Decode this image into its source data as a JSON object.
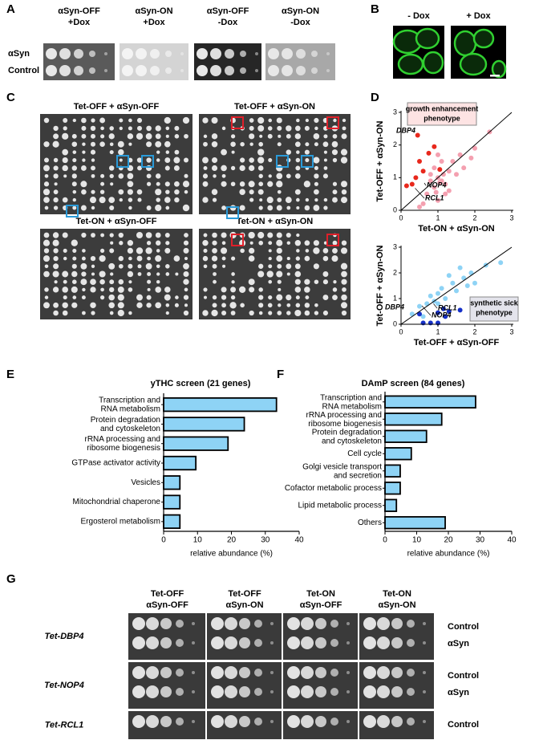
{
  "panel_labels": [
    "A",
    "B",
    "C",
    "D",
    "E",
    "F",
    "G"
  ],
  "panel_a": {
    "columns": [
      [
        "αSyn-OFF",
        "+Dox"
      ],
      [
        "αSyn-ON",
        "+Dox"
      ],
      [
        "αSyn-OFF",
        "-Dox"
      ],
      [
        "αSyn-ON",
        "-Dox"
      ]
    ],
    "rows": [
      "αSyn",
      "Control"
    ]
  },
  "panel_b": {
    "columns": [
      "- Dox",
      "+ Dox"
    ]
  },
  "panel_c": {
    "titles": [
      "Tet-OFF + αSyn-OFF",
      "Tet-OFF + αSyn-ON",
      "Tet-ON + αSyn-OFF",
      "Tet-ON + αSyn-ON"
    ]
  },
  "panel_g": {
    "columns": [
      [
        "Tet-OFF",
        "αSyn-OFF"
      ],
      [
        "Tet-OFF",
        "αSyn-ON"
      ],
      [
        "Tet-ON",
        "αSyn-OFF"
      ],
      [
        "Tet-ON",
        "αSyn-ON"
      ]
    ],
    "strains": [
      "Tet-DBP4",
      "Tet-NOP4",
      "Tet-RCL1"
    ],
    "strain_colors": [
      "#e0202a",
      "#1a7fc4",
      "#1a7fc4"
    ],
    "rows": [
      "Control",
      "αSyn"
    ]
  },
  "chart_data": [
    {
      "type": "bar",
      "orientation": "horizontal",
      "title": "yTHC screen (21 genes)",
      "categories": [
        "Transcription and\nRNA metabolism",
        "Protein degradation\nand cytoskeleton",
        "rRNA processing and\nribosome biogenesis",
        "GTPase activator activity",
        "Vesicles",
        "Mitochondrial chaperone",
        "Ergosterol metabolism"
      ],
      "values": [
        33.3,
        23.8,
        19.0,
        9.5,
        4.8,
        4.8,
        4.8
      ],
      "color": "#8ed3f5",
      "xlim": [
        0,
        40
      ],
      "xticks": [
        0,
        10,
        20,
        30,
        40
      ],
      "xlabel": "relative abundance (%)"
    },
    {
      "type": "bar",
      "orientation": "horizontal",
      "title": "DAmP screen (84 genes)",
      "categories": [
        "Transcription and\nRNA metabolism",
        "rRNA processing  and\nribosome biogenesis",
        "Protein degradation\nand cytoskeleton",
        "Cell cycle",
        "Golgi vesicle transport\nand secretion",
        "Cofactor metabolic process",
        "Lipid metabolic process",
        "Others"
      ],
      "values": [
        28.6,
        17.9,
        13.1,
        8.3,
        4.8,
        4.8,
        3.6,
        19.0
      ],
      "color": "#8ed3f5",
      "xlim": [
        0,
        40
      ],
      "xticks": [
        0,
        10,
        20,
        30,
        40
      ],
      "xlabel": "relative abundance (%)"
    },
    {
      "type": "scatter",
      "xlabel": "Tet-ON + αSyn-ON",
      "ylabel": "Tet-OFF + αSyn-ON",
      "annotation": [
        "growth enhancement",
        "phenotype"
      ],
      "annotation_color": "#e0202a",
      "annotation_fill": "#fde3e3",
      "labels": [
        "DBP4",
        "NOP4",
        "RCL1"
      ],
      "xlim": [
        0,
        3
      ],
      "ylim": [
        0,
        3
      ],
      "xticks": [
        0,
        1,
        2,
        3
      ],
      "yticks": [
        0,
        1,
        2,
        3
      ],
      "series": [
        {
          "color": "#f4a0b0",
          "x": [
            0.8,
            1.0,
            1.1,
            0.9,
            1.2,
            1.3,
            0.7,
            1.0,
            0.6,
            1.4,
            1.5,
            1.6,
            1.9,
            2.4,
            2.0,
            1.2,
            0.9,
            1.1,
            0.5,
            1.7,
            0.8,
            1.0,
            1.3,
            1.05,
            0.95,
            1.15
          ],
          "values": [
            1.1,
            1.0,
            0.9,
            0.7,
            0.8,
            1.2,
            0.5,
            0.3,
            0.2,
            1.5,
            1.1,
            1.7,
            1.6,
            2.4,
            1.9,
            0.5,
            1.3,
            1.5,
            0.1,
            1.3,
            0.9,
            1.7,
            0.6,
            0.85,
            0.55,
            1.1
          ]
        },
        {
          "color": "#e8281c",
          "x": [
            0.45,
            0.9,
            0.5,
            0.3,
            0.15,
            0.6,
            0.4,
            0.75,
            1.05
          ],
          "values": [
            2.3,
            1.95,
            1.5,
            0.8,
            0.75,
            1.2,
            1.0,
            1.75,
            1.25
          ]
        }
      ]
    },
    {
      "type": "scatter",
      "xlabel": "Tet-OFF + αSyn-OFF",
      "ylabel": "Tet-OFF + αSyn-ON",
      "annotation": [
        "synthetic sick",
        "phenotype"
      ],
      "annotation_color": "#1530c8",
      "annotation_fill": "#e4e4ec",
      "labels": [
        "DBP4",
        "RCL1",
        "NOP4"
      ],
      "xlim": [
        0,
        3
      ],
      "ylim": [
        0,
        3
      ],
      "xticks": [
        0,
        1,
        2,
        3
      ],
      "yticks": [
        0,
        1,
        2,
        3
      ],
      "series": [
        {
          "color": "#8ed3f5",
          "x": [
            0.3,
            0.5,
            0.7,
            0.8,
            1.0,
            1.1,
            1.2,
            1.4,
            1.5,
            1.7,
            1.9,
            2.0,
            2.3,
            2.7,
            1.3,
            0.9,
            1.6,
            0.6,
            1.0,
            1.8
          ],
          "values": [
            0.4,
            0.7,
            0.8,
            1.1,
            1.2,
            1.4,
            1.0,
            1.6,
            1.3,
            1.8,
            2.0,
            1.6,
            2.3,
            2.4,
            1.9,
            0.9,
            2.2,
            0.3,
            0.8,
            1.5
          ]
        },
        {
          "color": "#1530c8",
          "x": [
            0.5,
            0.6,
            0.8,
            1.0,
            1.2,
            1.0,
            1.3,
            1.6,
            2.1,
            1.15
          ],
          "values": [
            0.4,
            0.05,
            0.05,
            0.05,
            0.3,
            0.45,
            0.5,
            0.55,
            0.8,
            0.6
          ]
        }
      ]
    }
  ]
}
